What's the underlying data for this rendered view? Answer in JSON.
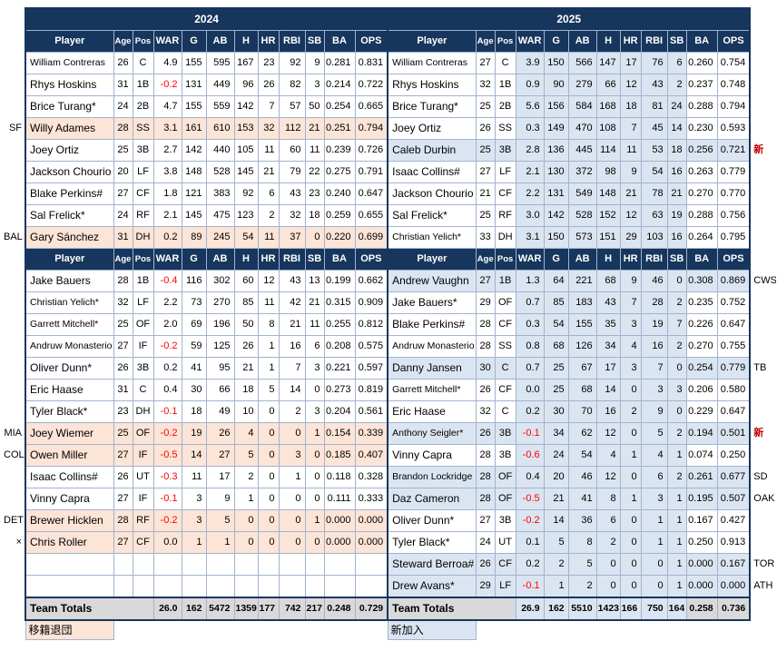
{
  "columns": [
    "Player",
    "Age",
    "Pos",
    "WAR",
    "G",
    "AB",
    "H",
    "HR",
    "RBI",
    "SB",
    "BA",
    "OPS"
  ],
  "colors": {
    "header_navy": "#17365d",
    "grid_line": "#a0b4cf",
    "departed_highlight": "#fce4d6",
    "new_highlight": "#dbe5f1",
    "totals_gray": "#d9d9d9",
    "negative_red": "#ff0000"
  },
  "legend": {
    "departed": "移籍退団",
    "new": "新加入"
  },
  "left": {
    "year": "2024",
    "starters": [
      {
        "player": "William Contreras",
        "age": "26",
        "pos": "C",
        "war": "4.9",
        "g": "155",
        "ab": "595",
        "h": "167",
        "hr": "23",
        "rbi": "92",
        "sb": "9",
        "ba": "0.281",
        "ops": "0.831"
      },
      {
        "player": "Rhys Hoskins",
        "age": "31",
        "pos": "1B",
        "war": "-0.2",
        "g": "131",
        "ab": "449",
        "h": "96",
        "hr": "26",
        "rbi": "82",
        "sb": "3",
        "ba": "0.214",
        "ops": "0.722"
      },
      {
        "player": "Brice Turang*",
        "age": "24",
        "pos": "2B",
        "war": "4.7",
        "g": "155",
        "ab": "559",
        "h": "142",
        "hr": "7",
        "rbi": "57",
        "sb": "50",
        "ba": "0.254",
        "ops": "0.665"
      },
      {
        "player": "Willy Adames",
        "age": "28",
        "pos": "SS",
        "war": "3.1",
        "g": "161",
        "ab": "610",
        "h": "153",
        "hr": "32",
        "rbi": "112",
        "sb": "21",
        "ba": "0.251",
        "ops": "0.794",
        "hl": true,
        "tag": "SF"
      },
      {
        "player": "Joey Ortiz",
        "age": "25",
        "pos": "3B",
        "war": "2.7",
        "g": "142",
        "ab": "440",
        "h": "105",
        "hr": "11",
        "rbi": "60",
        "sb": "11",
        "ba": "0.239",
        "ops": "0.726"
      },
      {
        "player": "Jackson Chourio",
        "age": "20",
        "pos": "LF",
        "war": "3.8",
        "g": "148",
        "ab": "528",
        "h": "145",
        "hr": "21",
        "rbi": "79",
        "sb": "22",
        "ba": "0.275",
        "ops": "0.791"
      },
      {
        "player": "Blake Perkins#",
        "age": "27",
        "pos": "CF",
        "war": "1.8",
        "g": "121",
        "ab": "383",
        "h": "92",
        "hr": "6",
        "rbi": "43",
        "sb": "23",
        "ba": "0.240",
        "ops": "0.647"
      },
      {
        "player": "Sal Frelick*",
        "age": "24",
        "pos": "RF",
        "war": "2.1",
        "g": "145",
        "ab": "475",
        "h": "123",
        "hr": "2",
        "rbi": "32",
        "sb": "18",
        "ba": "0.259",
        "ops": "0.655"
      },
      {
        "player": "Gary Sánchez",
        "age": "31",
        "pos": "DH",
        "war": "0.2",
        "g": "89",
        "ab": "245",
        "h": "54",
        "hr": "11",
        "rbi": "37",
        "sb": "0",
        "ba": "0.220",
        "ops": "0.699",
        "hl": true,
        "tag": "BAL"
      }
    ],
    "bench": [
      {
        "player": "Jake Bauers",
        "age": "28",
        "pos": "1B",
        "war": "-0.4",
        "g": "116",
        "ab": "302",
        "h": "60",
        "hr": "12",
        "rbi": "43",
        "sb": "13",
        "ba": "0.199",
        "ops": "0.662"
      },
      {
        "player": "Christian Yelich*",
        "age": "32",
        "pos": "LF",
        "war": "2.2",
        "g": "73",
        "ab": "270",
        "h": "85",
        "hr": "11",
        "rbi": "42",
        "sb": "21",
        "ba": "0.315",
        "ops": "0.909"
      },
      {
        "player": "Garrett Mitchell*",
        "age": "25",
        "pos": "OF",
        "war": "2.0",
        "g": "69",
        "ab": "196",
        "h": "50",
        "hr": "8",
        "rbi": "21",
        "sb": "11",
        "ba": "0.255",
        "ops": "0.812"
      },
      {
        "player": "Andruw Monasterio",
        "age": "27",
        "pos": "IF",
        "war": "-0.2",
        "g": "59",
        "ab": "125",
        "h": "26",
        "hr": "1",
        "rbi": "16",
        "sb": "6",
        "ba": "0.208",
        "ops": "0.575"
      },
      {
        "player": "Oliver Dunn*",
        "age": "26",
        "pos": "3B",
        "war": "0.2",
        "g": "41",
        "ab": "95",
        "h": "21",
        "hr": "1",
        "rbi": "7",
        "sb": "3",
        "ba": "0.221",
        "ops": "0.597"
      },
      {
        "player": "Eric Haase",
        "age": "31",
        "pos": "C",
        "war": "0.4",
        "g": "30",
        "ab": "66",
        "h": "18",
        "hr": "5",
        "rbi": "14",
        "sb": "0",
        "ba": "0.273",
        "ops": "0.819"
      },
      {
        "player": "Tyler Black*",
        "age": "23",
        "pos": "DH",
        "war": "-0.1",
        "g": "18",
        "ab": "49",
        "h": "10",
        "hr": "0",
        "rbi": "2",
        "sb": "3",
        "ba": "0.204",
        "ops": "0.561"
      },
      {
        "player": "Joey Wiemer",
        "age": "25",
        "pos": "OF",
        "war": "-0.2",
        "g": "19",
        "ab": "26",
        "h": "4",
        "hr": "0",
        "rbi": "0",
        "sb": "1",
        "ba": "0.154",
        "ops": "0.339",
        "hl": true,
        "tag": "MIA"
      },
      {
        "player": "Owen Miller",
        "age": "27",
        "pos": "IF",
        "war": "-0.5",
        "g": "14",
        "ab": "27",
        "h": "5",
        "hr": "0",
        "rbi": "3",
        "sb": "0",
        "ba": "0.185",
        "ops": "0.407",
        "hl": true,
        "tag": "COL"
      },
      {
        "player": "Isaac Collins#",
        "age": "26",
        "pos": "UT",
        "war": "-0.3",
        "g": "11",
        "ab": "17",
        "h": "2",
        "hr": "0",
        "rbi": "1",
        "sb": "0",
        "ba": "0.118",
        "ops": "0.328"
      },
      {
        "player": "Vinny Capra",
        "age": "27",
        "pos": "IF",
        "war": "-0.1",
        "g": "3",
        "ab": "9",
        "h": "1",
        "hr": "0",
        "rbi": "0",
        "sb": "0",
        "ba": "0.111",
        "ops": "0.333"
      },
      {
        "player": "Brewer Hicklen",
        "age": "28",
        "pos": "RF",
        "war": "-0.2",
        "g": "3",
        "ab": "5",
        "h": "0",
        "hr": "0",
        "rbi": "0",
        "sb": "1",
        "ba": "0.000",
        "ops": "0.000",
        "hl": true,
        "tag": "DET"
      },
      {
        "player": "Chris Roller",
        "age": "27",
        "pos": "CF",
        "war": "0.0",
        "g": "1",
        "ab": "1",
        "h": "0",
        "hr": "0",
        "rbi": "0",
        "sb": "0",
        "ba": "0.000",
        "ops": "0.000",
        "hl": true,
        "tag": "×"
      }
    ],
    "totals": {
      "label": "Team Totals",
      "war": "26.0",
      "g": "162",
      "ab": "5472",
      "h": "1359",
      "hr": "177",
      "rbi": "742",
      "sb": "217",
      "ba": "0.248",
      "ops": "0.729"
    }
  },
  "right": {
    "year": "2025",
    "starters": [
      {
        "player": "William Contreras",
        "age": "27",
        "pos": "C",
        "war": "3.9",
        "g": "150",
        "ab": "566",
        "h": "147",
        "hr": "17",
        "rbi": "76",
        "sb": "6",
        "ba": "0.260",
        "ops": "0.754"
      },
      {
        "player": "Rhys Hoskins",
        "age": "32",
        "pos": "1B",
        "war": "0.9",
        "g": "90",
        "ab": "279",
        "h": "66",
        "hr": "12",
        "rbi": "43",
        "sb": "2",
        "ba": "0.237",
        "ops": "0.748"
      },
      {
        "player": "Brice Turang*",
        "age": "25",
        "pos": "2B",
        "war": "5.6",
        "g": "156",
        "ab": "584",
        "h": "168",
        "hr": "18",
        "rbi": "81",
        "sb": "24",
        "ba": "0.288",
        "ops": "0.794"
      },
      {
        "player": "Joey Ortiz",
        "age": "26",
        "pos": "SS",
        "war": "0.3",
        "g": "149",
        "ab": "470",
        "h": "108",
        "hr": "7",
        "rbi": "45",
        "sb": "14",
        "ba": "0.230",
        "ops": "0.593"
      },
      {
        "player": "Caleb Durbin",
        "age": "25",
        "pos": "3B",
        "war": "2.8",
        "g": "136",
        "ab": "445",
        "h": "114",
        "hr": "11",
        "rbi": "53",
        "sb": "18",
        "ba": "0.256",
        "ops": "0.721",
        "hl": true,
        "tag": "新"
      },
      {
        "player": "Isaac Collins#",
        "age": "27",
        "pos": "LF",
        "war": "2.1",
        "g": "130",
        "ab": "372",
        "h": "98",
        "hr": "9",
        "rbi": "54",
        "sb": "16",
        "ba": "0.263",
        "ops": "0.779"
      },
      {
        "player": "Jackson Chourio",
        "age": "21",
        "pos": "CF",
        "war": "2.2",
        "g": "131",
        "ab": "549",
        "h": "148",
        "hr": "21",
        "rbi": "78",
        "sb": "21",
        "ba": "0.270",
        "ops": "0.770"
      },
      {
        "player": "Sal Frelick*",
        "age": "25",
        "pos": "RF",
        "war": "3.0",
        "g": "142",
        "ab": "528",
        "h": "152",
        "hr": "12",
        "rbi": "63",
        "sb": "19",
        "ba": "0.288",
        "ops": "0.756"
      },
      {
        "player": "Christian Yelich*",
        "age": "33",
        "pos": "DH",
        "war": "3.1",
        "g": "150",
        "ab": "573",
        "h": "151",
        "hr": "29",
        "rbi": "103",
        "sb": "16",
        "ba": "0.264",
        "ops": "0.795"
      }
    ],
    "bench": [
      {
        "player": "Andrew Vaughn",
        "age": "27",
        "pos": "1B",
        "war": "1.3",
        "g": "64",
        "ab": "221",
        "h": "68",
        "hr": "9",
        "rbi": "46",
        "sb": "0",
        "ba": "0.308",
        "ops": "0.869",
        "hl": true,
        "tag": "CWS"
      },
      {
        "player": "Jake Bauers*",
        "age": "29",
        "pos": "OF",
        "war": "0.7",
        "g": "85",
        "ab": "183",
        "h": "43",
        "hr": "7",
        "rbi": "28",
        "sb": "2",
        "ba": "0.235",
        "ops": "0.752"
      },
      {
        "player": "Blake Perkins#",
        "age": "28",
        "pos": "CF",
        "war": "0.3",
        "g": "54",
        "ab": "155",
        "h": "35",
        "hr": "3",
        "rbi": "19",
        "sb": "7",
        "ba": "0.226",
        "ops": "0.647"
      },
      {
        "player": "Andruw Monasterio",
        "age": "28",
        "pos": "SS",
        "war": "0.8",
        "g": "68",
        "ab": "126",
        "h": "34",
        "hr": "4",
        "rbi": "16",
        "sb": "2",
        "ba": "0.270",
        "ops": "0.755"
      },
      {
        "player": "Danny Jansen",
        "age": "30",
        "pos": "C",
        "war": "0.7",
        "g": "25",
        "ab": "67",
        "h": "17",
        "hr": "3",
        "rbi": "7",
        "sb": "0",
        "ba": "0.254",
        "ops": "0.779",
        "hl": true,
        "tag": "TB"
      },
      {
        "player": "Garrett Mitchell*",
        "age": "26",
        "pos": "CF",
        "war": "0.0",
        "g": "25",
        "ab": "68",
        "h": "14",
        "hr": "0",
        "rbi": "3",
        "sb": "3",
        "ba": "0.206",
        "ops": "0.580"
      },
      {
        "player": "Eric Haase",
        "age": "32",
        "pos": "C",
        "war": "0.2",
        "g": "30",
        "ab": "70",
        "h": "16",
        "hr": "2",
        "rbi": "9",
        "sb": "0",
        "ba": "0.229",
        "ops": "0.647"
      },
      {
        "player": "Anthony Seigler*",
        "age": "26",
        "pos": "3B",
        "war": "-0.1",
        "g": "34",
        "ab": "62",
        "h": "12",
        "hr": "0",
        "rbi": "5",
        "sb": "2",
        "ba": "0.194",
        "ops": "0.501",
        "hl": true,
        "tag": "新"
      },
      {
        "player": "Vinny Capra",
        "age": "28",
        "pos": "3B",
        "war": "-0.6",
        "g": "24",
        "ab": "54",
        "h": "4",
        "hr": "1",
        "rbi": "4",
        "sb": "1",
        "ba": "0.074",
        "ops": "0.250"
      },
      {
        "player": "Brandon Lockridge",
        "age": "28",
        "pos": "OF",
        "war": "0.4",
        "g": "20",
        "ab": "46",
        "h": "12",
        "hr": "0",
        "rbi": "6",
        "sb": "2",
        "ba": "0.261",
        "ops": "0.677",
        "hl": true,
        "tag": "SD"
      },
      {
        "player": "Daz Cameron",
        "age": "28",
        "pos": "OF",
        "war": "-0.5",
        "g": "21",
        "ab": "41",
        "h": "8",
        "hr": "1",
        "rbi": "3",
        "sb": "1",
        "ba": "0.195",
        "ops": "0.507",
        "hl": true,
        "tag": "OAK"
      },
      {
        "player": "Oliver Dunn*",
        "age": "27",
        "pos": "3B",
        "war": "-0.2",
        "g": "14",
        "ab": "36",
        "h": "6",
        "hr": "0",
        "rbi": "1",
        "sb": "1",
        "ba": "0.167",
        "ops": "0.427"
      },
      {
        "player": "Tyler Black*",
        "age": "24",
        "pos": "UT",
        "war": "0.1",
        "g": "5",
        "ab": "8",
        "h": "2",
        "hr": "0",
        "rbi": "1",
        "sb": "1",
        "ba": "0.250",
        "ops": "0.913"
      },
      {
        "player": "Steward Berroa#",
        "age": "26",
        "pos": "CF",
        "war": "0.2",
        "g": "2",
        "ab": "5",
        "h": "0",
        "hr": "0",
        "rbi": "0",
        "sb": "1",
        "ba": "0.000",
        "ops": "0.167",
        "hl": true,
        "tag": "TOR"
      },
      {
        "player": "Drew Avans*",
        "age": "29",
        "pos": "LF",
        "war": "-0.1",
        "g": "1",
        "ab": "2",
        "h": "0",
        "hr": "0",
        "rbi": "0",
        "sb": "1",
        "ba": "0.000",
        "ops": "0.000",
        "hl": true,
        "tag": "ATH"
      }
    ],
    "totals": {
      "label": "Team Totals",
      "war": "26.9",
      "g": "162",
      "ab": "5510",
      "h": "1423",
      "hr": "166",
      "rbi": "750",
      "sb": "164",
      "ba": "0.258",
      "ops": "0.736"
    }
  }
}
